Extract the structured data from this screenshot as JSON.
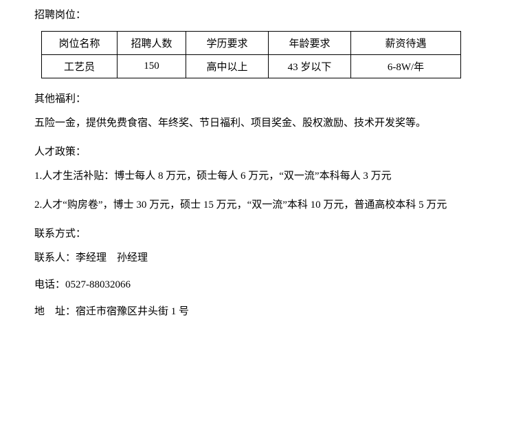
{
  "sections": {
    "recruitment_title": "招聘岗位：",
    "table": {
      "headers": [
        "岗位名称",
        "招聘人数",
        "学历要求",
        "年龄要求",
        "薪资待遇"
      ],
      "rows": [
        [
          "工艺员",
          "150",
          "高中以上",
          "43 岁以下",
          "6-8W/年"
        ]
      ]
    },
    "other_benefits_title": "其他福利：",
    "other_benefits_text": "五险一金，提供免费食宿、年终奖、节日福利、项目奖金、股权激励、技术开发奖等。",
    "talent_policy_title": "人才政策：",
    "talent_policy_1": "1.人才生活补贴：博士每人 8 万元，硕士每人 6 万元，“双一流”本科每人 3 万元",
    "talent_policy_2": "2.人才“购房卷”，博士 30 万元，硕士 15 万元，“双一流”本科 10 万元，普通高校本科 5 万元",
    "contact_title": "联系方式：",
    "contact_person": "联系人：李经理　孙经理",
    "contact_phone": "电话：0527-88032066",
    "contact_address": "地　址：宿迁市宿豫区井头街 1 号"
  }
}
